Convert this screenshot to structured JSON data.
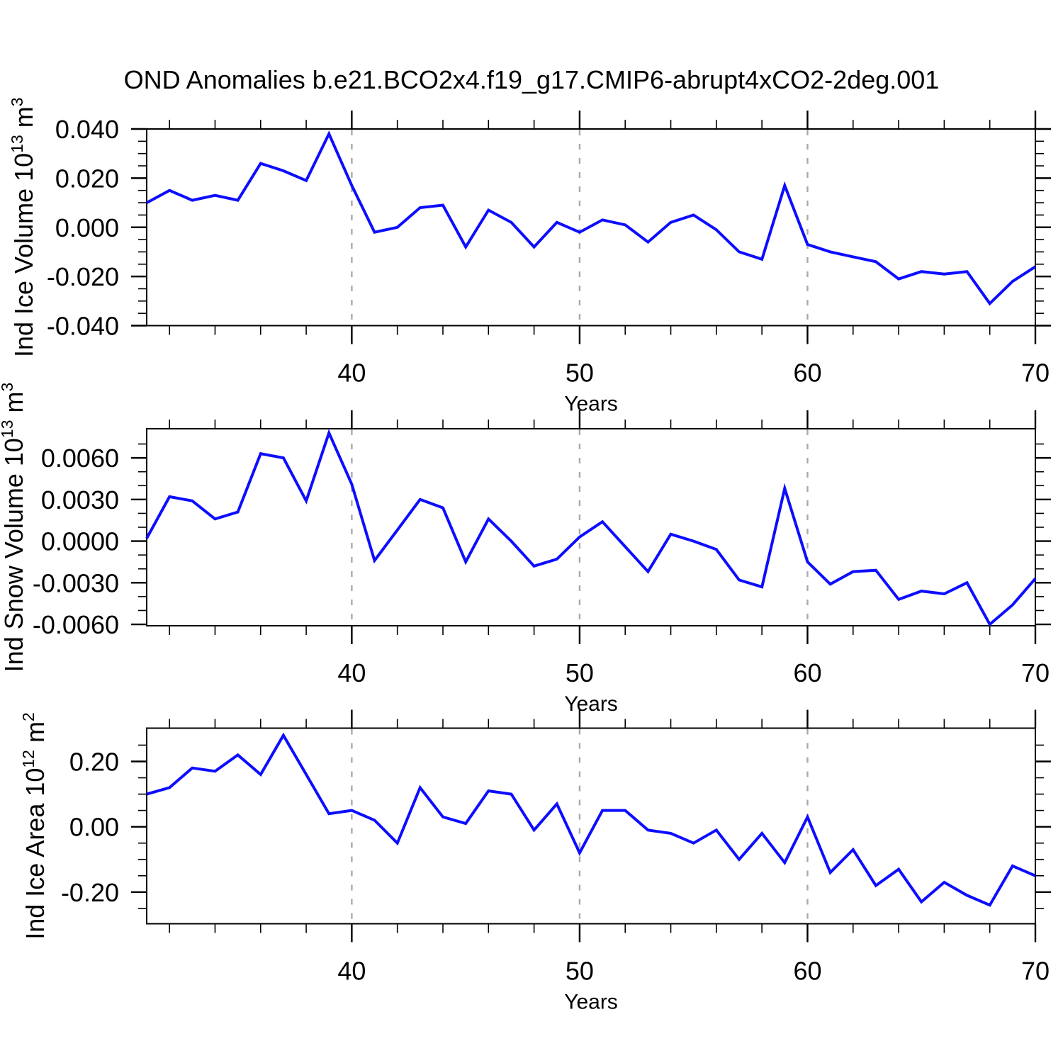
{
  "title": "OND Anomalies b.e21.BCO2x4.f19_g17.CMIP6-abrupt4xCO2-2deg.001",
  "colors": {
    "line": "#0d0dff",
    "grid": "#aaaaaa",
    "axis": "#000000"
  },
  "chart_data": [
    {
      "id": "ice-volume",
      "type": "line",
      "ylabel": "Ind Ice Volume 10^13 m^3",
      "ylabel_parts": [
        "Ind Ice Volume 10",
        {
          "sup": "13"
        },
        " m",
        {
          "sup": "3"
        }
      ],
      "xlabel": "Years",
      "x": [
        31,
        32,
        33,
        34,
        35,
        36,
        37,
        38,
        39,
        40,
        41,
        42,
        43,
        44,
        45,
        46,
        47,
        48,
        49,
        50,
        51,
        52,
        53,
        54,
        55,
        56,
        57,
        58,
        59,
        60,
        61,
        62,
        63,
        64,
        65,
        66,
        67,
        68,
        69,
        70
      ],
      "values": [
        0.01,
        0.015,
        0.011,
        0.013,
        0.011,
        0.026,
        0.023,
        0.019,
        0.038,
        0.017,
        -0.002,
        0.0,
        0.008,
        0.009,
        -0.008,
        0.007,
        0.002,
        -0.008,
        0.002,
        -0.002,
        0.003,
        0.001,
        -0.006,
        0.002,
        0.005,
        -0.001,
        -0.01,
        -0.013,
        0.017,
        -0.007,
        -0.01,
        -0.012,
        -0.014,
        -0.021,
        -0.018,
        -0.019,
        -0.018,
        -0.031,
        -0.022,
        -0.016
      ],
      "xlim": [
        31,
        70
      ],
      "ylim": [
        -0.04,
        0.04
      ],
      "yticks": [
        {
          "v": 0.04,
          "label": "0.040"
        },
        {
          "v": 0.02,
          "label": "0.020"
        },
        {
          "v": 0.0,
          "label": "0.000"
        },
        {
          "v": -0.02,
          "label": "-0.020"
        },
        {
          "v": -0.04,
          "label": "-0.040"
        }
      ],
      "y_minor_step": 0.005,
      "xticks": [
        {
          "v": 40,
          "label": "40"
        },
        {
          "v": 50,
          "label": "50"
        },
        {
          "v": 60,
          "label": "60"
        },
        {
          "v": 70,
          "label": "70"
        }
      ],
      "x_minor_step": 2,
      "gridlines_x": [
        40,
        50,
        60
      ],
      "grid_style": "dashed-vertical",
      "legend": "none",
      "line_color": "#0d0dff"
    },
    {
      "id": "snow-volume",
      "type": "line",
      "ylabel": "Ind Snow Volume 10^13 m^3",
      "ylabel_parts": [
        "Ind Snow Volume 10",
        {
          "sup": "13"
        },
        " m",
        {
          "sup": "3"
        }
      ],
      "xlabel": "Years",
      "x": [
        31,
        32,
        33,
        34,
        35,
        36,
        37,
        38,
        39,
        40,
        41,
        42,
        43,
        44,
        45,
        46,
        47,
        48,
        49,
        50,
        51,
        52,
        53,
        54,
        55,
        56,
        57,
        58,
        59,
        60,
        61,
        62,
        63,
        64,
        65,
        66,
        67,
        68,
        69,
        70
      ],
      "values": [
        0.0002,
        0.0032,
        0.0029,
        0.0016,
        0.0021,
        0.0063,
        0.006,
        0.0029,
        0.0078,
        0.0041,
        -0.0014,
        0.0008,
        0.003,
        0.0024,
        -0.0015,
        0.0016,
        0.0,
        -0.0018,
        -0.0013,
        0.0003,
        0.0014,
        -0.0004,
        -0.0022,
        0.0005,
        0.0,
        -0.0006,
        -0.0028,
        -0.0033,
        0.0038,
        -0.0015,
        -0.0031,
        -0.0022,
        -0.0021,
        -0.0042,
        -0.0036,
        -0.0038,
        -0.003,
        -0.006,
        -0.0046,
        -0.0027
      ],
      "xlim": [
        31,
        70
      ],
      "ylim": [
        -0.0061,
        0.0081
      ],
      "yticks": [
        {
          "v": 0.006,
          "label": "0.0060"
        },
        {
          "v": 0.003,
          "label": "0.0030"
        },
        {
          "v": 0.0,
          "label": "0.0000"
        },
        {
          "v": -0.003,
          "label": "-0.0030"
        },
        {
          "v": -0.006,
          "label": "-0.0060"
        }
      ],
      "y_minor_step": 0.001,
      "xticks": [
        {
          "v": 40,
          "label": "40"
        },
        {
          "v": 50,
          "label": "50"
        },
        {
          "v": 60,
          "label": "60"
        },
        {
          "v": 70,
          "label": "70"
        }
      ],
      "x_minor_step": 2,
      "gridlines_x": [
        40,
        50,
        60
      ],
      "grid_style": "dashed-vertical",
      "legend": "none",
      "line_color": "#0d0dff"
    },
    {
      "id": "ice-area",
      "type": "line",
      "ylabel": "Ind Ice Area 10^12 m^2",
      "ylabel_parts": [
        "Ind Ice Area 10",
        {
          "sup": "12"
        },
        " m",
        {
          "sup": "2"
        }
      ],
      "xlabel": "Years",
      "x": [
        31,
        32,
        33,
        34,
        35,
        36,
        37,
        38,
        39,
        40,
        41,
        42,
        43,
        44,
        45,
        46,
        47,
        48,
        49,
        50,
        51,
        52,
        53,
        54,
        55,
        56,
        57,
        58,
        59,
        60,
        61,
        62,
        63,
        64,
        65,
        66,
        67,
        68,
        69,
        70
      ],
      "values": [
        0.1,
        0.12,
        0.18,
        0.17,
        0.22,
        0.16,
        0.28,
        0.16,
        0.04,
        0.05,
        0.02,
        -0.05,
        0.12,
        0.03,
        0.01,
        0.11,
        0.1,
        -0.01,
        0.07,
        -0.08,
        0.05,
        0.05,
        -0.01,
        -0.02,
        -0.05,
        -0.01,
        -0.1,
        -0.02,
        -0.11,
        0.03,
        -0.14,
        -0.07,
        -0.18,
        -0.13,
        -0.23,
        -0.17,
        -0.21,
        -0.24,
        -0.12,
        -0.15
      ],
      "xlim": [
        31,
        70
      ],
      "ylim": [
        -0.297,
        0.302
      ],
      "yticks": [
        {
          "v": 0.2,
          "label": "0.20"
        },
        {
          "v": 0.0,
          "label": "0.00"
        },
        {
          "v": -0.2,
          "label": "-0.20"
        }
      ],
      "y_minor_step": 0.05,
      "xticks": [
        {
          "v": 40,
          "label": "40"
        },
        {
          "v": 50,
          "label": "50"
        },
        {
          "v": 60,
          "label": "60"
        },
        {
          "v": 70,
          "label": "70"
        }
      ],
      "x_minor_step": 2,
      "gridlines_x": [
        40,
        50,
        60
      ],
      "grid_style": "dashed-vertical",
      "legend": "none",
      "line_color": "#0d0dff"
    }
  ]
}
